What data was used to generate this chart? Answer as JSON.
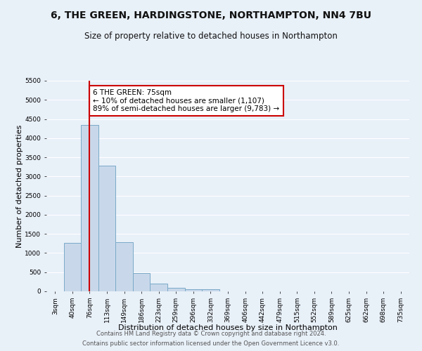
{
  "title": "6, THE GREEN, HARDINGSTONE, NORTHAMPTON, NN4 7BU",
  "subtitle": "Size of property relative to detached houses in Northampton",
  "xlabel": "Distribution of detached houses by size in Northampton",
  "ylabel": "Number of detached properties",
  "categories": [
    "3sqm",
    "40sqm",
    "76sqm",
    "113sqm",
    "149sqm",
    "186sqm",
    "223sqm",
    "259sqm",
    "296sqm",
    "332sqm",
    "369sqm",
    "406sqm",
    "442sqm",
    "479sqm",
    "515sqm",
    "552sqm",
    "589sqm",
    "625sqm",
    "662sqm",
    "698sqm",
    "735sqm"
  ],
  "values": [
    0,
    1270,
    4350,
    3280,
    1280,
    470,
    210,
    90,
    55,
    50,
    0,
    0,
    0,
    0,
    0,
    0,
    0,
    0,
    0,
    0,
    0
  ],
  "bar_color": "#c8d8ea",
  "bar_edge_color": "#7aaac8",
  "bar_edge_width": 0.7,
  "marker_index": 2,
  "marker_color": "#cc0000",
  "annotation_text": "6 THE GREEN: 75sqm\n← 10% of detached houses are smaller (1,107)\n89% of semi-detached houses are larger (9,783) →",
  "annotation_box_color": "#ffffff",
  "annotation_box_edge_color": "#cc0000",
  "ylim": [
    0,
    5500
  ],
  "yticks": [
    0,
    500,
    1000,
    1500,
    2000,
    2500,
    3000,
    3500,
    4000,
    4500,
    5000,
    5500
  ],
  "background_color": "#e8f0f8",
  "grid_color": "#ffffff",
  "footer_line1": "Contains HM Land Registry data © Crown copyright and database right 2024.",
  "footer_line2": "Contains public sector information licensed under the Open Government Licence v3.0.",
  "title_fontsize": 10,
  "subtitle_fontsize": 8.5,
  "xlabel_fontsize": 8,
  "ylabel_fontsize": 8,
  "tick_fontsize": 6.5,
  "annotation_fontsize": 7.5,
  "footer_fontsize": 6
}
